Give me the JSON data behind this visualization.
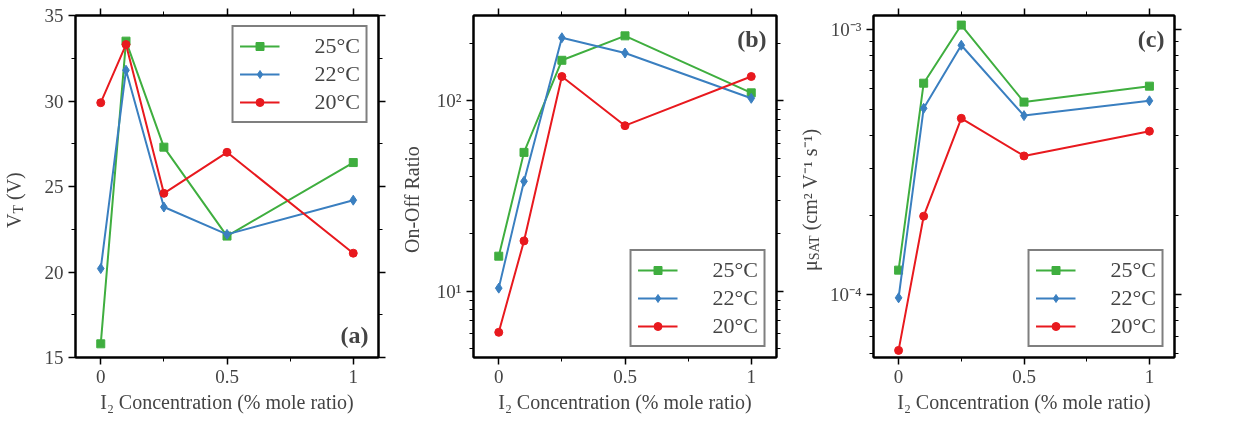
{
  "chart_data": [
    {
      "type": "line",
      "xlabel": "I₂ Concentration (% mole ratio)",
      "ylabel": "V$_{T}$ (V)",
      "x": [
        0,
        0.1,
        0.25,
        0.5,
        1
      ],
      "xlim": [
        -0.1,
        1.1
      ],
      "xticks": [
        0,
        0.5,
        1
      ],
      "ylim": [
        15,
        35
      ],
      "yticks": [
        15,
        20,
        25,
        30,
        35
      ],
      "grid": false,
      "legend": "top right",
      "annotations": [
        "(a)"
      ],
      "series": [
        {
          "name": "25°C",
          "color": "#3fae3f",
          "marker": "square",
          "values": [
            15.8,
            33.5,
            27.3,
            22.1,
            26.4
          ]
        },
        {
          "name": "22°C",
          "color": "#3a7fc0",
          "marker": "diamond",
          "values": [
            20.2,
            31.8,
            23.8,
            22.2,
            24.2
          ]
        },
        {
          "name": "20°C",
          "color": "#e8191e",
          "marker": "circle",
          "values": [
            29.9,
            33.3,
            24.6,
            27.0,
            21.1
          ]
        }
      ]
    },
    {
      "type": "line",
      "xlabel": "I₂ Concentration (% mole ratio)",
      "ylabel": "On-Off Ratio",
      "x": [
        0,
        0.1,
        0.25,
        0.5,
        1
      ],
      "xlim": [
        -0.1,
        1.1
      ],
      "xticks": [
        0,
        0.5,
        1
      ],
      "log": "y",
      "ylim": [
        4.5,
        280
      ],
      "yticks": [
        {
          "value": 10,
          "label": "10¹"
        },
        {
          "value": 100,
          "label": "10²"
        }
      ],
      "grid": false,
      "legend": "bottom right",
      "annotations": [
        "(b)"
      ],
      "series": [
        {
          "name": "25°C",
          "color": "#3fae3f",
          "marker": "square",
          "values": [
            15.3,
            53.6,
            163,
            219,
            110
          ]
        },
        {
          "name": "22°C",
          "color": "#3a7fc0",
          "marker": "diamond",
          "values": [
            10.4,
            37.8,
            214,
            178,
            103
          ]
        },
        {
          "name": "20°C",
          "color": "#e8191e",
          "marker": "circle",
          "values": [
            6.1,
            18.4,
            134,
            74,
            134
          ]
        }
      ]
    },
    {
      "type": "line",
      "xlabel": "I₂ Concentration (% mole ratio)",
      "ylabel": "μ$_{SAT}$ (cm² V⁻¹ s⁻¹)",
      "x": [
        0,
        0.1,
        0.25,
        0.5,
        1
      ],
      "xlim": [
        -0.1,
        1.1
      ],
      "xticks": [
        0,
        0.5,
        1
      ],
      "log": "y",
      "ylim": [
        5.81e-05,
        0.00113
      ],
      "yticks": [
        {
          "value": 0.0001,
          "label": "10⁻⁴"
        },
        {
          "value": 0.001,
          "label": "10⁻³"
        }
      ],
      "grid": false,
      "legend": "bottom right",
      "annotations": [
        "(c)"
      ],
      "series": [
        {
          "name": "25°C",
          "color": "#3fae3f",
          "marker": "square",
          "values": [
            0.000124,
            0.000628,
            0.00104,
            0.000533,
            0.000612
          ]
        },
        {
          "name": "22°C",
          "color": "#3a7fc0",
          "marker": "diamond",
          "values": [
            9.75e-05,
            0.000505,
            0.000873,
            0.000474,
            0.000539
          ]
        },
        {
          "name": "20°C",
          "color": "#e8191e",
          "marker": "circle",
          "values": [
            6.18e-05,
            0.000198,
            0.000463,
            0.000334,
            0.000414
          ]
        }
      ]
    }
  ]
}
